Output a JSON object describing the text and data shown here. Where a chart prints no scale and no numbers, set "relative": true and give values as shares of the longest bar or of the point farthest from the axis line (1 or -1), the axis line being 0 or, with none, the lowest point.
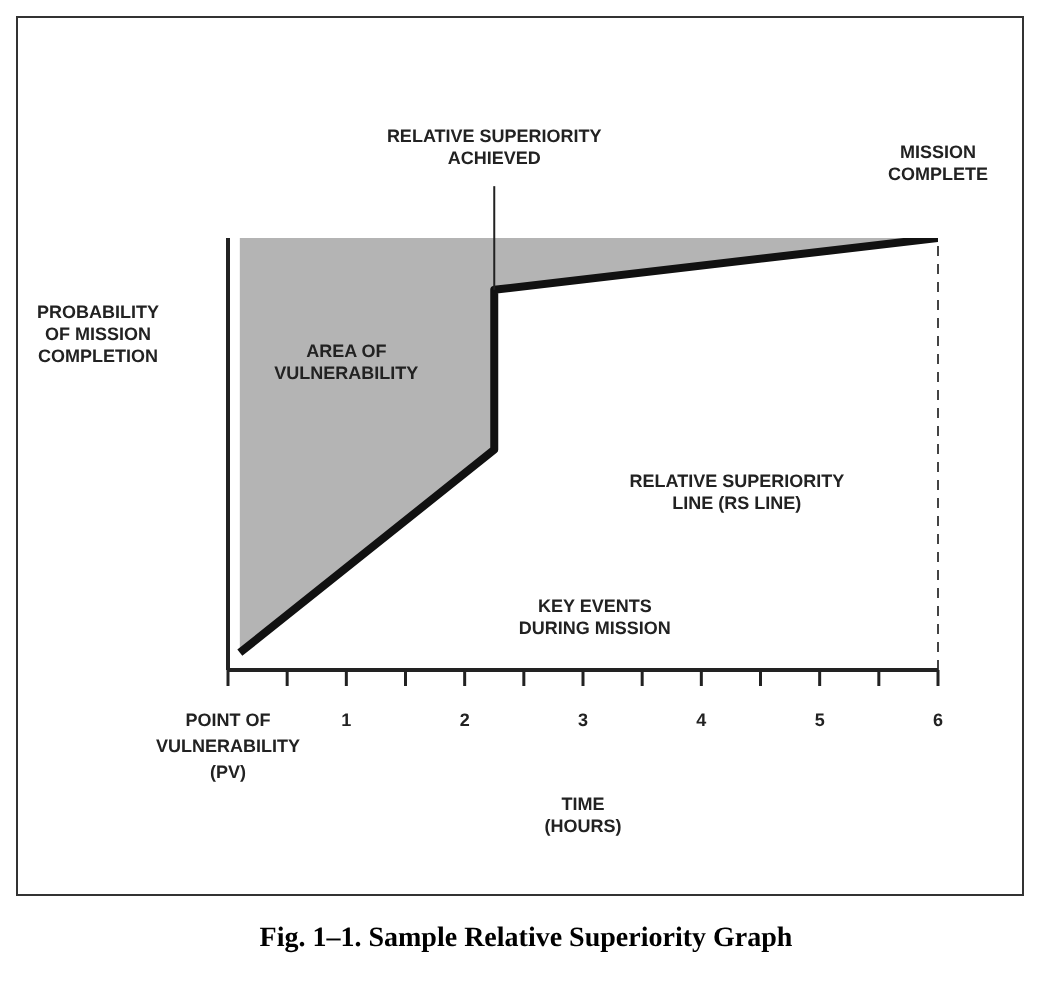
{
  "chart_data": {
    "type": "line",
    "title": "Fig. 1–1. Sample Relative Superiority Graph",
    "xlabel": "TIME (HOURS)",
    "ylabel": "PROBABILITY OF MISSION COMPLETION",
    "relative": true,
    "xlim": [
      0,
      6
    ],
    "xticks": [
      {
        "value": 0,
        "label": "POINT OF VULNERABILITY (PV)"
      },
      {
        "value": 0.5,
        "label": null
      },
      1,
      {
        "value": 1.5,
        "label": null
      },
      2,
      {
        "value": 2.5,
        "label": null
      },
      3,
      {
        "value": 3.5,
        "label": null
      },
      4,
      {
        "value": 4.5,
        "label": null
      },
      5,
      {
        "value": 5.5,
        "label": null
      },
      6
    ],
    "series": [
      {
        "color": "#111111",
        "x": [
          0.1,
          2.25,
          2.25,
          6
        ],
        "values": [
          0.04,
          0.51,
          0.88,
          1
        ],
        "lower": [
          0.04,
          0.51,
          0.88,
          1
        ],
        "upper": [
          1,
          1,
          1,
          1
        ]
      }
    ],
    "ref_lines": [
      {
        "axis": "x",
        "value": 6,
        "label": "MISSION COMPLETE",
        "line_style": "dashed",
        "color": "#444444"
      }
    ],
    "annotations": [
      {
        "text": "RELATIVE SUPERIORITY ACHIEVED",
        "x": 2.25,
        "y": 0.88
      },
      "AREA OF VULNERABILITY",
      "RELATIVE SUPERIORITY LINE (RS LINE)",
      "KEY EVENTS DURING MISSION"
    ]
  }
}
